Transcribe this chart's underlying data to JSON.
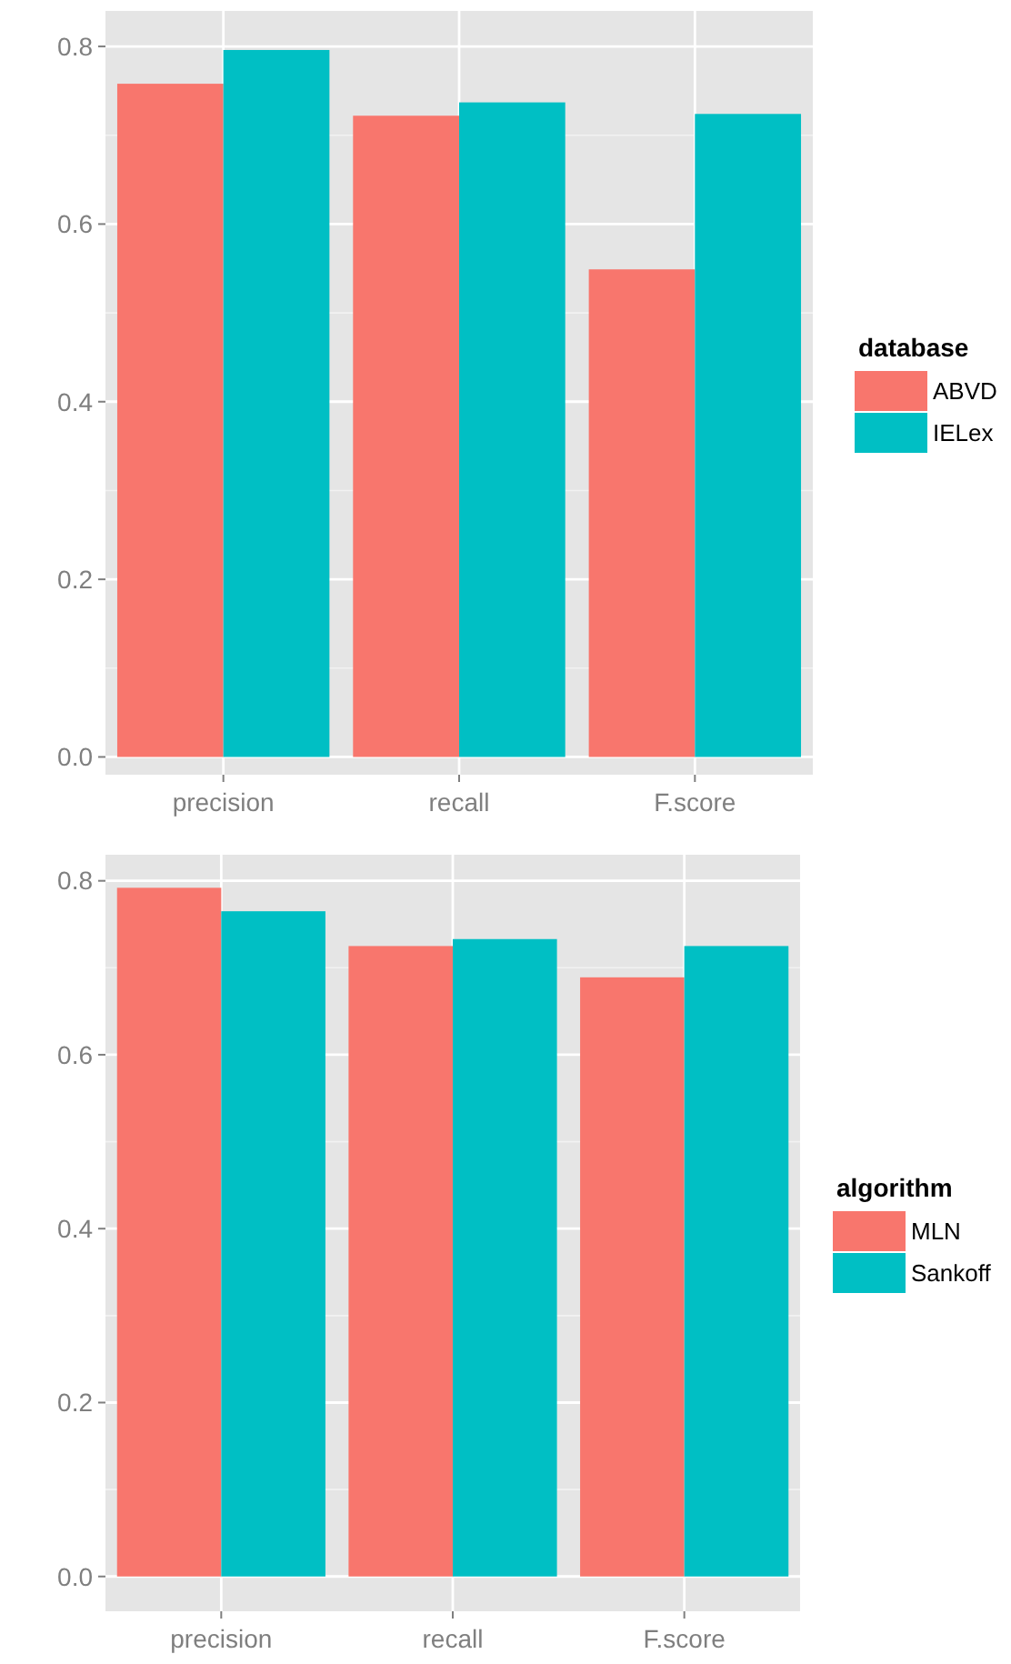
{
  "chart_data": [
    {
      "type": "bar",
      "categories": [
        "precision",
        "recall",
        "F.score"
      ],
      "legend_title": "database",
      "legend": "right",
      "grid": true,
      "ylim": [
        -0.02,
        0.84
      ],
      "yticks": [
        {
          "value": 0,
          "label": "0.0"
        },
        {
          "value": 0.2,
          "label": "0.2"
        },
        {
          "value": 0.4,
          "label": "0.4"
        },
        {
          "value": 0.6,
          "label": "0.6"
        },
        {
          "value": 0.8,
          "label": "0.8"
        }
      ],
      "series": [
        {
          "name": "ABVD",
          "color": "#f8766d",
          "values": [
            0.758,
            0.722,
            0.549
          ]
        },
        {
          "name": "IELex",
          "color": "#00bfc4",
          "values": [
            0.796,
            0.737,
            0.724
          ]
        }
      ]
    },
    {
      "type": "bar",
      "categories": [
        "precision",
        "recall",
        "F.score"
      ],
      "legend_title": "algorithm",
      "legend": "right",
      "grid": true,
      "ylim": [
        -0.04,
        0.83
      ],
      "yticks": [
        {
          "value": 0,
          "label": "0.0"
        },
        {
          "value": 0.2,
          "label": "0.2"
        },
        {
          "value": 0.4,
          "label": "0.4"
        },
        {
          "value": 0.6,
          "label": "0.6"
        },
        {
          "value": 0.8,
          "label": "0.8"
        }
      ],
      "series": [
        {
          "name": "MLN",
          "color": "#f8766d",
          "values": [
            0.792,
            0.725,
            0.689
          ]
        },
        {
          "name": "Sankoff",
          "color": "#00bfc4",
          "values": [
            0.765,
            0.733,
            0.725
          ]
        }
      ]
    }
  ]
}
